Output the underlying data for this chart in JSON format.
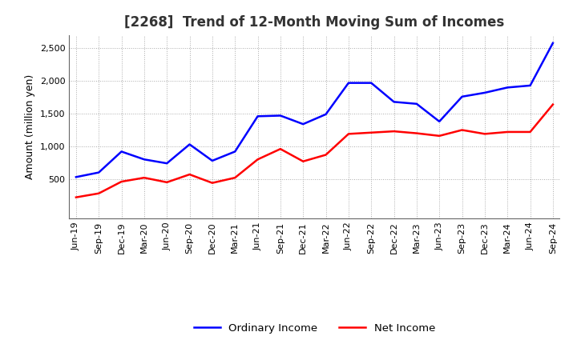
{
  "title": "[2268]  Trend of 12-Month Moving Sum of Incomes",
  "ylabel": "Amount (million yen)",
  "xlabels": [
    "Jun-19",
    "Sep-19",
    "Dec-19",
    "Mar-20",
    "Jun-20",
    "Sep-20",
    "Dec-20",
    "Mar-21",
    "Jun-21",
    "Sep-21",
    "Dec-21",
    "Mar-22",
    "Jun-22",
    "Sep-22",
    "Dec-22",
    "Mar-23",
    "Jun-23",
    "Sep-23",
    "Dec-23",
    "Mar-24",
    "Jun-24",
    "Sep-24"
  ],
  "ordinary_income": [
    530,
    600,
    920,
    800,
    740,
    1030,
    780,
    920,
    1460,
    1470,
    1340,
    1490,
    1970,
    1970,
    1680,
    1650,
    1380,
    1760,
    1820,
    1900,
    1930,
    2580
  ],
  "net_income": [
    220,
    280,
    460,
    520,
    450,
    570,
    440,
    520,
    800,
    960,
    770,
    870,
    1190,
    1210,
    1230,
    1200,
    1160,
    1250,
    1190,
    1220,
    1220,
    1640
  ],
  "ordinary_color": "#0000FF",
  "net_color": "#FF0000",
  "ylim": [
    -100,
    2700
  ],
  "yticks": [
    500,
    1000,
    1500,
    2000,
    2500
  ],
  "background_color": "#FFFFFF",
  "grid_color": "#AAAAAA",
  "title_fontsize": 12,
  "axis_fontsize": 9,
  "tick_fontsize": 8,
  "legend_fontsize": 9.5
}
